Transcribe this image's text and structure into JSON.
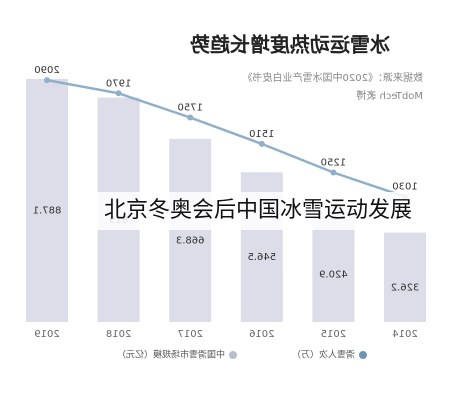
{
  "chart_data": {
    "type": "bar",
    "title": "冰雪运动热度增长趋势",
    "source": "数据来源：《2020中国冰雪产业白皮书》",
    "source2": "MobTech 袤博",
    "caption": "北京冬奥会后中国冰雪运动发展",
    "categories": [
      "2014",
      "2015",
      "2016",
      "2017",
      "2018",
      "2019"
    ],
    "ylim": [
      0,
      1000
    ],
    "y2lim": [
      0,
      2500
    ],
    "series": [
      {
        "name": "中国滑雪市场规模（亿元）",
        "type": "bar",
        "color": "#dcdde8",
        "values": [
          326.2,
          420.9,
          546.5,
          668.3,
          819,
          887.1
        ]
      },
      {
        "name": "滑雪人次（万）",
        "type": "line",
        "axis": "y2",
        "color": "#8fb0c8",
        "values": [
          1030,
          1250,
          1510,
          1750,
          1970,
          2090
        ]
      }
    ]
  }
}
